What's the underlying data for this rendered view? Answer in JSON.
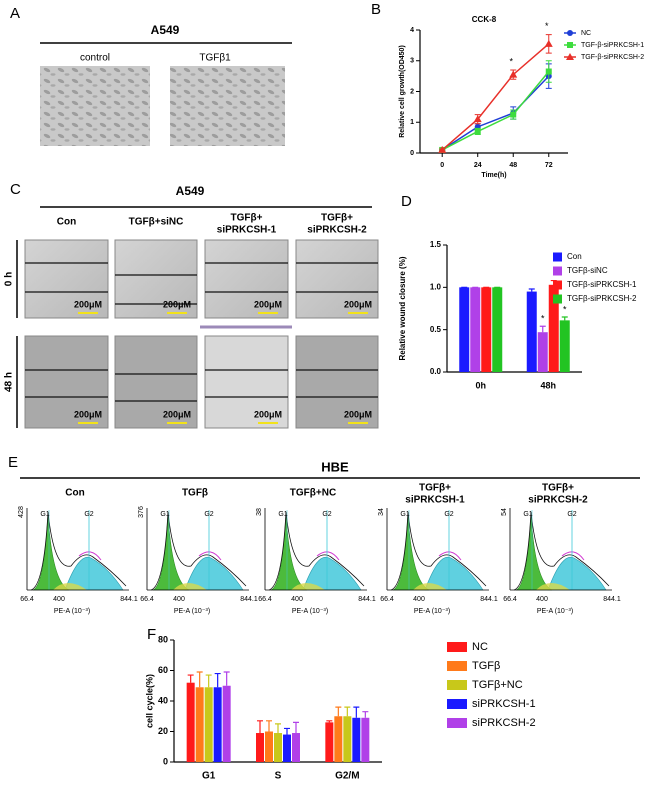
{
  "panels": {
    "a": {
      "letter": "A",
      "title": "A549",
      "columns": [
        "control",
        "TGFβ1"
      ]
    },
    "c": {
      "letter": "C",
      "title": "A549",
      "columns": [
        [
          "Con"
        ],
        [
          "TGFβ+siNC"
        ],
        [
          "TGFβ+",
          "siPRKCSH-1"
        ],
        [
          "TGFβ+",
          "siPRKCSH-2"
        ]
      ],
      "rows": [
        "0 h",
        "48 h"
      ],
      "scale_bar": "200μM"
    },
    "e": {
      "letter": "E",
      "title": "HBE",
      "plots": [
        {
          "title": [
            "Con"
          ],
          "ymax": "428"
        },
        {
          "title": [
            "TGFβ"
          ],
          "ymax": "376"
        },
        {
          "title": [
            "TGFβ+NC"
          ],
          "ymax": "38"
        },
        {
          "title": [
            "TGFβ+",
            "siPRKCSH-1"
          ],
          "ymax": "34"
        },
        {
          "title": [
            "TGFβ+",
            "siPRKCSH-2"
          ],
          "ymax": "54"
        }
      ],
      "peaks": [
        "G1",
        "G2"
      ],
      "xmin": "66.4",
      "xmid": "400",
      "xmax": "844.1",
      "xlabel": "PE-A (10⁻³)"
    }
  },
  "chart_data": [
    {
      "type": "line",
      "panel_label": "B",
      "title": "CCK-8",
      "xlabel": "Time(h)",
      "ylabel": "Relative cell growth(OD450)",
      "x": [
        0,
        24,
        48,
        72
      ],
      "xlim": [
        -15,
        85
      ],
      "xticks": [
        0,
        24,
        48,
        72
      ],
      "ylim": [
        0,
        4
      ],
      "yticks": [
        0,
        1,
        2,
        3,
        4
      ],
      "legend": "right",
      "series": [
        {
          "name": "NC",
          "color": "#1f3fd6",
          "marker": "circle",
          "values": [
            0.1,
            0.85,
            1.3,
            2.5
          ],
          "errors": [
            0.03,
            0.1,
            0.2,
            0.4
          ]
        },
        {
          "name": "TGF-β-siPRKCSH-1",
          "color": "#3ddc3d",
          "marker": "square",
          "values": [
            0.1,
            0.7,
            1.25,
            2.65
          ],
          "errors": [
            0.03,
            0.1,
            0.15,
            0.35
          ]
        },
        {
          "name": "TGF-β-siPRKCSH-2",
          "color": "#e8302a",
          "marker": "triangle",
          "values": [
            0.1,
            1.1,
            2.55,
            3.55
          ],
          "errors": [
            0.03,
            0.15,
            0.15,
            0.3
          ],
          "annotations": [
            null,
            null,
            "*",
            "*"
          ]
        }
      ]
    },
    {
      "type": "bar",
      "panel_label": "D",
      "ylabel": "Relative wound closure (%)",
      "categories": [
        "0h",
        "48h"
      ],
      "ylim": [
        0,
        1.5
      ],
      "yticks": [
        {
          "value": 0,
          "label": "0.0"
        },
        0.5,
        {
          "value": 1,
          "label": "1.0"
        },
        1.5
      ],
      "legend": "right",
      "series": [
        {
          "name": "Con",
          "color": "#1a1aff",
          "values": [
            1.0,
            0.95
          ],
          "errors": [
            0,
            0.03
          ]
        },
        {
          "name": "TGFβ-siNC",
          "color": "#b040e8",
          "values": [
            1.0,
            0.47
          ],
          "errors": [
            0,
            0.07
          ],
          "annotations": [
            null,
            "*"
          ]
        },
        {
          "name": "TGFβ-siPRKCSH-1",
          "color": "#ff1a1a",
          "values": [
            1.0,
            1.03
          ],
          "errors": [
            0,
            0.05
          ]
        },
        {
          "name": "TGFβ-siPRKCSH-2",
          "color": "#22c422",
          "values": [
            1.0,
            0.61
          ],
          "errors": [
            0,
            0.04
          ],
          "annotations": [
            null,
            "*"
          ]
        }
      ]
    },
    {
      "type": "bar",
      "panel_label": "F",
      "ylabel": "cell cycle(%)",
      "categories": [
        "G1",
        "S",
        "G2/M"
      ],
      "ylim": [
        0,
        80
      ],
      "yticks": [
        0,
        20,
        40,
        60,
        80
      ],
      "legend": "right",
      "series": [
        {
          "name": "NC",
          "color": "#ff1a1a",
          "values": [
            52,
            19,
            26
          ],
          "errors": [
            5,
            8,
            1
          ]
        },
        {
          "name": "TGFβ",
          "color": "#ff7a1a",
          "values": [
            49,
            20,
            30
          ],
          "errors": [
            10,
            7,
            6
          ]
        },
        {
          "name": "TGFβ+NC",
          "color": "#c8c81a",
          "values": [
            49,
            19,
            30
          ],
          "errors": [
            8,
            6,
            6
          ]
        },
        {
          "name": "siPRKCSH-1",
          "color": "#1a1aff",
          "values": [
            49,
            18,
            29
          ],
          "errors": [
            9,
            4,
            7
          ]
        },
        {
          "name": "siPRKCSH-2",
          "color": "#b040e8",
          "values": [
            50,
            19,
            29
          ],
          "errors": [
            9,
            7,
            4
          ]
        }
      ]
    }
  ]
}
